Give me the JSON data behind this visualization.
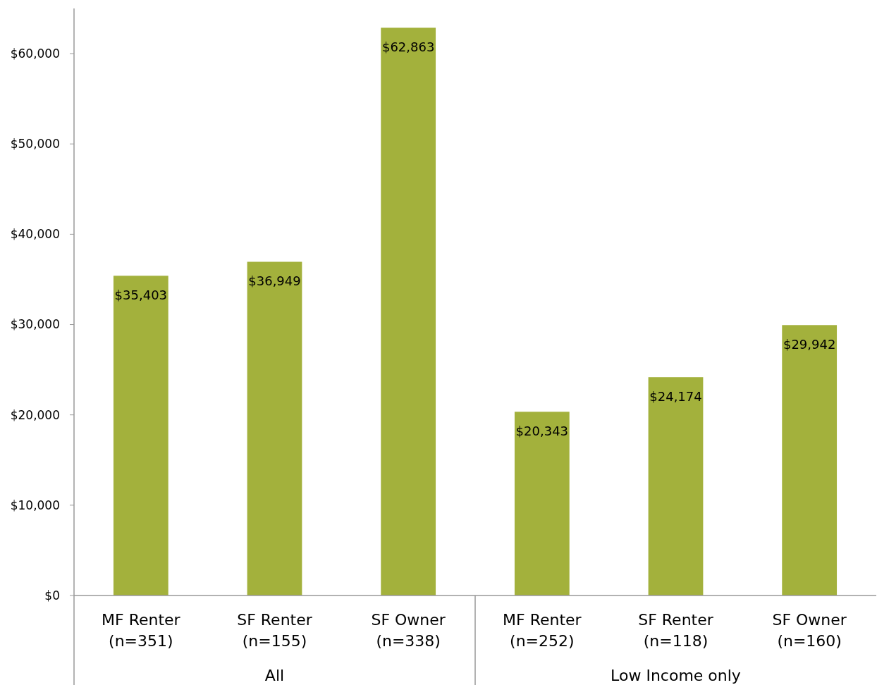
{
  "chart_data": {
    "type": "bar",
    "categories": [
      "MF Renter\n(n=351)",
      "SF Renter\n(n=155)",
      "SF Owner\n(n=338)",
      "MF Renter\n(n=252)",
      "SF Renter\n(n=118)",
      "SF Owner\n(n=160)"
    ],
    "values": [
      35403,
      36949,
      62863,
      20343,
      24174,
      29942
    ],
    "color": "#a3b13c",
    "ylim": [
      0,
      65000
    ],
    "yticks": [
      {
        "value": 0,
        "label": "$0"
      },
      {
        "value": 10000,
        "label": "$10,000"
      },
      {
        "value": 20000,
        "label": "$20,000"
      },
      {
        "value": 30000,
        "label": "$30,000"
      },
      {
        "value": 40000,
        "label": "$40,000"
      },
      {
        "value": 50000,
        "label": "$50,000"
      },
      {
        "value": 60000,
        "label": "$60,000"
      }
    ],
    "value_labels": [
      "$35,403",
      "$36,949",
      "$62,863",
      "$20,343",
      "$24,174",
      "$29,942"
    ],
    "annotations": [
      "All",
      "Low Income only"
    ],
    "grid": false
  }
}
